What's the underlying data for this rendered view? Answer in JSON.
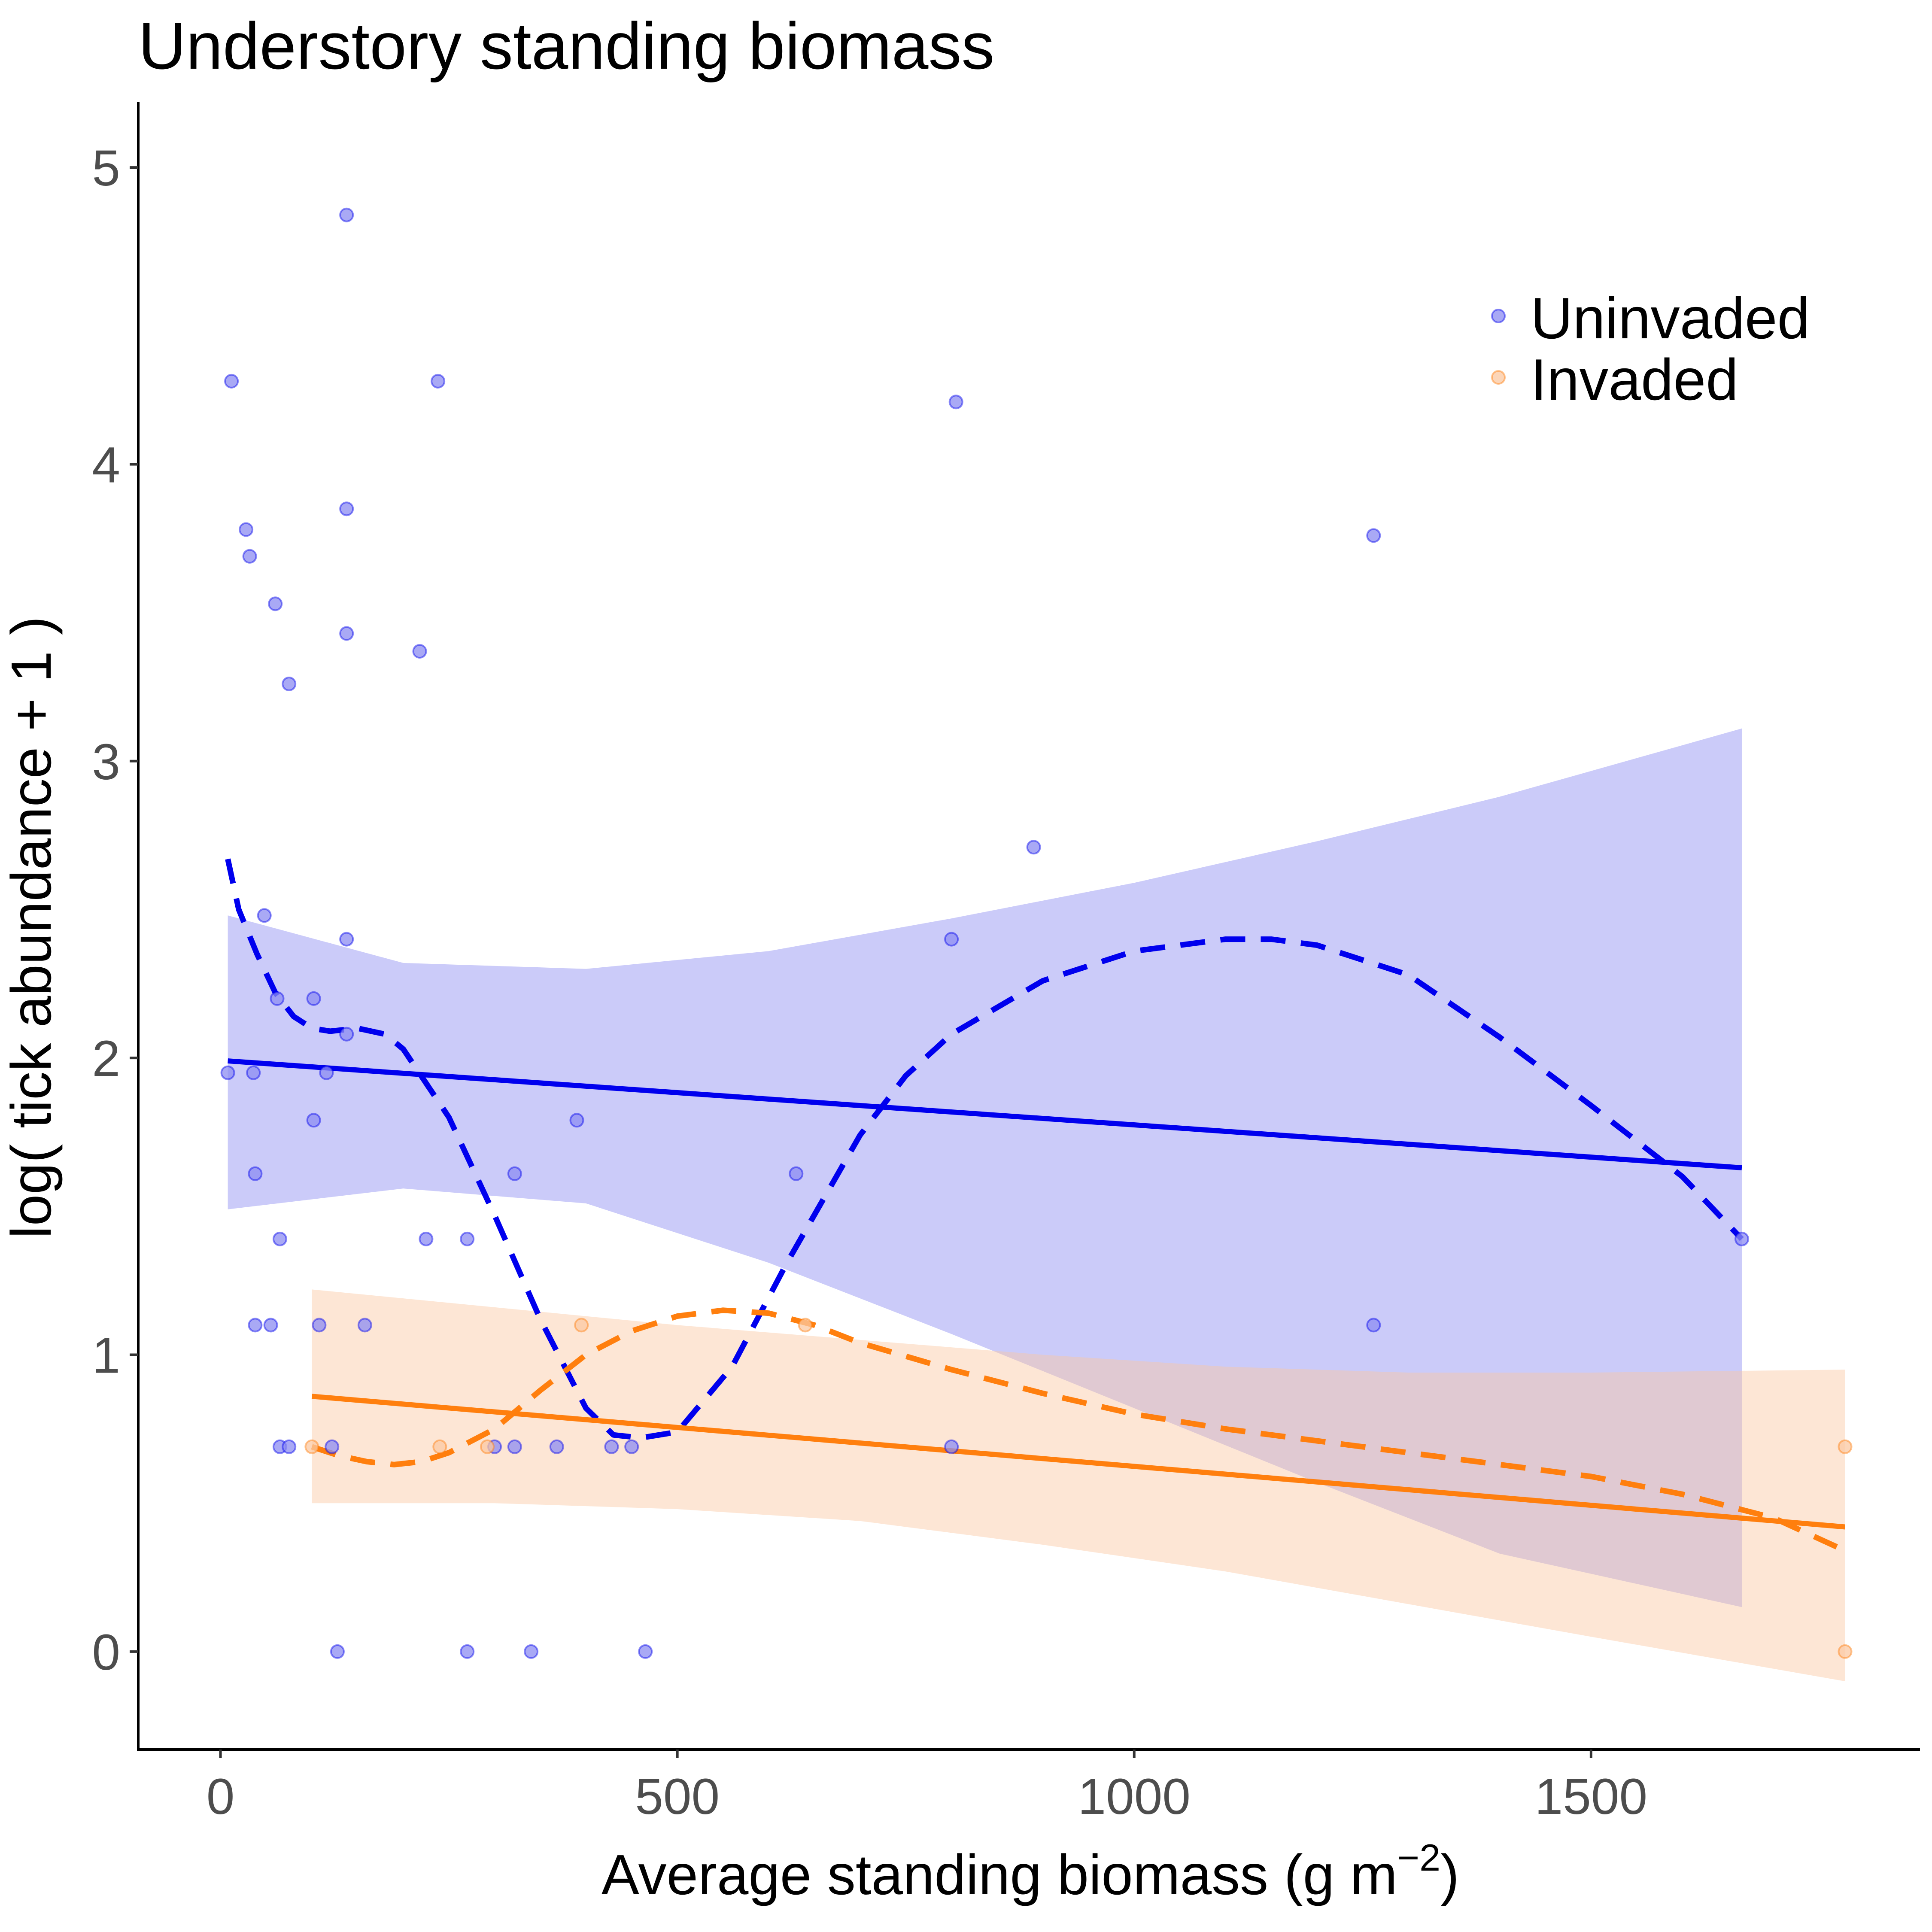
{
  "chart_data": {
    "type": "scatter",
    "title": "Understory standing biomass",
    "xlabel": "Average standing biomass (g m",
    "xlabel_superscript": "−2",
    "xlabel_suffix": ")",
    "ylabel": "log( tick abundance + 1 )",
    "xlim": [
      -90,
      1860
    ],
    "ylim": [
      -0.33,
      5.22
    ],
    "x_ticks": [
      0,
      500,
      1000,
      1500
    ],
    "y_ticks": [
      0,
      1,
      2,
      3,
      4,
      5
    ],
    "grid": false,
    "legend_position": "top-right",
    "series": [
      {
        "name": "Uninvaded",
        "color": "#0000ee",
        "fill": "#8c8cf2",
        "points": [
          [
            8,
            1.95
          ],
          [
            12,
            4.28
          ],
          [
            28,
            3.78
          ],
          [
            32,
            3.69
          ],
          [
            36,
            1.95
          ],
          [
            38,
            1.61
          ],
          [
            38,
            1.1
          ],
          [
            48,
            2.48
          ],
          [
            55,
            1.1
          ],
          [
            60,
            3.53
          ],
          [
            62,
            2.2
          ],
          [
            65,
            1.39
          ],
          [
            65,
            0.69
          ],
          [
            75,
            0.69
          ],
          [
            75,
            3.26
          ],
          [
            102,
            2.2
          ],
          [
            102,
            1.79
          ],
          [
            108,
            1.1
          ],
          [
            116,
            1.95
          ],
          [
            122,
            0.69
          ],
          [
            128,
            0.0
          ],
          [
            138,
            4.84
          ],
          [
            138,
            3.85
          ],
          [
            138,
            3.43
          ],
          [
            138,
            2.4
          ],
          [
            138,
            2.08
          ],
          [
            158,
            1.1
          ],
          [
            218,
            3.37
          ],
          [
            225,
            1.39
          ],
          [
            238,
            4.28
          ],
          [
            270,
            1.39
          ],
          [
            270,
            0.0
          ],
          [
            300,
            0.69
          ],
          [
            322,
            1.61
          ],
          [
            322,
            0.69
          ],
          [
            340,
            0.0
          ],
          [
            368,
            0.69
          ],
          [
            390,
            1.79
          ],
          [
            428,
            0.69
          ],
          [
            450,
            0.69
          ],
          [
            465,
            0.0
          ],
          [
            630,
            1.61
          ],
          [
            800,
            2.4
          ],
          [
            800,
            0.69
          ],
          [
            805,
            4.21
          ],
          [
            890,
            2.71
          ],
          [
            1262,
            3.76
          ],
          [
            1262,
            1.1
          ],
          [
            1665,
            1.39
          ]
        ],
        "linear_fit": {
          "x": [
            8,
            1665
          ],
          "y": [
            1.99,
            1.63
          ]
        },
        "ci_x": [
          8,
          200,
          400,
          600,
          800,
          1000,
          1200,
          1400,
          1665
        ],
        "ci_upper": [
          2.48,
          2.32,
          2.3,
          2.36,
          2.47,
          2.59,
          2.73,
          2.88,
          3.11
        ],
        "ci_lower": [
          1.49,
          1.56,
          1.51,
          1.31,
          1.07,
          0.82,
          0.57,
          0.33,
          0.15
        ],
        "smooth": {
          "x": [
            8,
            20,
            40,
            60,
            80,
            100,
            120,
            150,
            180,
            200,
            250,
            300,
            350,
            400,
            430,
            460,
            500,
            560,
            620,
            700,
            750,
            800,
            900,
            1000,
            1100,
            1150,
            1200,
            1300,
            1400,
            1500,
            1600,
            1665
          ],
          "y": [
            2.67,
            2.5,
            2.35,
            2.22,
            2.14,
            2.1,
            2.09,
            2.1,
            2.08,
            2.03,
            1.8,
            1.47,
            1.12,
            0.82,
            0.73,
            0.72,
            0.74,
            0.96,
            1.31,
            1.74,
            1.94,
            2.08,
            2.26,
            2.36,
            2.4,
            2.4,
            2.38,
            2.28,
            2.07,
            1.84,
            1.6,
            1.39
          ]
        }
      },
      {
        "name": "Invaded",
        "color": "#ff7f0e",
        "fill": "#fbc8a2",
        "points": [
          [
            100,
            0.69
          ],
          [
            240,
            0.69
          ],
          [
            292,
            0.69
          ],
          [
            395,
            1.1
          ],
          [
            640,
            1.1
          ],
          [
            1778,
            0.69
          ],
          [
            1778,
            0.0
          ]
        ],
        "linear_fit": {
          "x": [
            100,
            1778
          ],
          "y": [
            0.86,
            0.42
          ]
        },
        "ci_x": [
          100,
          300,
          500,
          700,
          900,
          1100,
          1300,
          1500,
          1778
        ],
        "ci_upper": [
          1.22,
          1.16,
          1.1,
          1.05,
          1.0,
          0.96,
          0.94,
          0.94,
          0.95
        ],
        "ci_lower": [
          0.5,
          0.5,
          0.48,
          0.44,
          0.36,
          0.27,
          0.16,
          0.05,
          -0.1
        ],
        "smooth": {
          "x": [
            100,
            130,
            160,
            190,
            220,
            250,
            300,
            350,
            400,
            450,
            500,
            550,
            600,
            650,
            700,
            800,
            900,
            1000,
            1100,
            1200,
            1300,
            1400,
            1500,
            1600,
            1700,
            1778
          ],
          "y": [
            0.69,
            0.66,
            0.64,
            0.63,
            0.64,
            0.67,
            0.75,
            0.88,
            1.0,
            1.08,
            1.13,
            1.15,
            1.14,
            1.1,
            1.04,
            0.95,
            0.87,
            0.8,
            0.75,
            0.71,
            0.67,
            0.63,
            0.59,
            0.53,
            0.45,
            0.34
          ]
        }
      }
    ]
  }
}
